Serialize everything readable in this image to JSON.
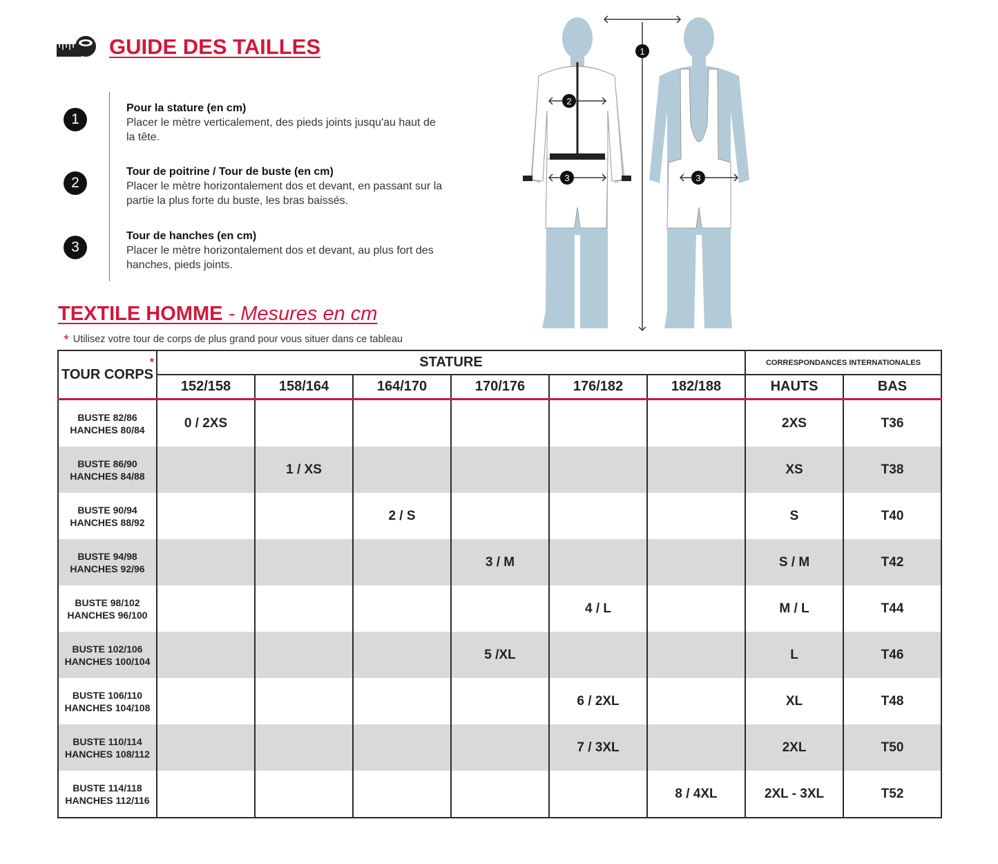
{
  "header": {
    "title": "GUIDE DES TAILLES",
    "icon": "measuring-tape-icon"
  },
  "steps": [
    {
      "num": "1",
      "title": "Pour la stature (en cm)",
      "text": "Placer le mètre verticalement, des pieds joints jusqu'au haut de la tête."
    },
    {
      "num": "2",
      "title": "Tour de poitrine / Tour de buste (en cm)",
      "text": "Placer le mètre horizontalement dos et devant, en passant sur la partie la plus forte du buste, les bras baissés."
    },
    {
      "num": "3",
      "title": "Tour de hanches (en cm)",
      "text": "Placer le mètre horizontalement dos et devant, au plus fort des hanches, pieds joints."
    }
  ],
  "figure": {
    "markers": [
      "1",
      "2",
      "3",
      "3"
    ]
  },
  "section": {
    "title": "TEXTILE HOMME",
    "subtitle": "- Mesures en cm",
    "note_star": "*",
    "note": "Utilisez votre tour de corps de plus grand pour vous situer dans ce tableau"
  },
  "colors": {
    "accent": "#d3163a",
    "row_alt": "#d9d9d9",
    "figure": "#b3cbd9"
  },
  "table": {
    "tour_corps": "TOUR CORPS",
    "tour_star": "*",
    "stature": "STATURE",
    "correspondances": "CORRESPONDANCES INTERNATIONALES",
    "stature_cols": [
      "152/158",
      "158/164",
      "164/170",
      "170/176",
      "176/182",
      "182/188"
    ],
    "hauts": "HAUTS",
    "bas": "BAS",
    "rows": [
      {
        "buste": "BUSTE 82/86",
        "hanches": "HANCHES 80/84",
        "cells": [
          "0 / 2XS",
          "",
          "",
          "",
          "",
          ""
        ],
        "hauts": "2XS",
        "bas": "T36"
      },
      {
        "buste": "BUSTE 86/90",
        "hanches": "HANCHES 84/88",
        "cells": [
          "",
          "1 / XS",
          "",
          "",
          "",
          ""
        ],
        "hauts": "XS",
        "bas": "T38"
      },
      {
        "buste": "BUSTE 90/94",
        "hanches": "HANCHES 88/92",
        "cells": [
          "",
          "",
          "2 / S",
          "",
          "",
          ""
        ],
        "hauts": "S",
        "bas": "T40"
      },
      {
        "buste": "BUSTE 94/98",
        "hanches": "HANCHES 92/96",
        "cells": [
          "",
          "",
          "",
          "3 / M",
          "",
          ""
        ],
        "hauts": "S / M",
        "bas": "T42"
      },
      {
        "buste": "BUSTE 98/102",
        "hanches": "HANCHES 96/100",
        "cells": [
          "",
          "",
          "",
          "",
          "4 / L",
          ""
        ],
        "hauts": "M / L",
        "bas": "T44"
      },
      {
        "buste": "BUSTE 102/106",
        "hanches": "HANCHES 100/104",
        "cells": [
          "",
          "",
          "",
          "5 /XL",
          "",
          ""
        ],
        "hauts": "L",
        "bas": "T46"
      },
      {
        "buste": "BUSTE 106/110",
        "hanches": "HANCHES 104/108",
        "cells": [
          "",
          "",
          "",
          "",
          "6 / 2XL",
          ""
        ],
        "hauts": "XL",
        "bas": "T48"
      },
      {
        "buste": "BUSTE 110/114",
        "hanches": "HANCHES 108/112",
        "cells": [
          "",
          "",
          "",
          "",
          "7 / 3XL",
          ""
        ],
        "hauts": "2XL",
        "bas": "T50"
      },
      {
        "buste": "BUSTE 114/118",
        "hanches": "HANCHES 112/116",
        "cells": [
          "",
          "",
          "",
          "",
          "",
          "8 / 4XL"
        ],
        "hauts": "2XL - 3XL",
        "bas": "T52"
      }
    ]
  }
}
